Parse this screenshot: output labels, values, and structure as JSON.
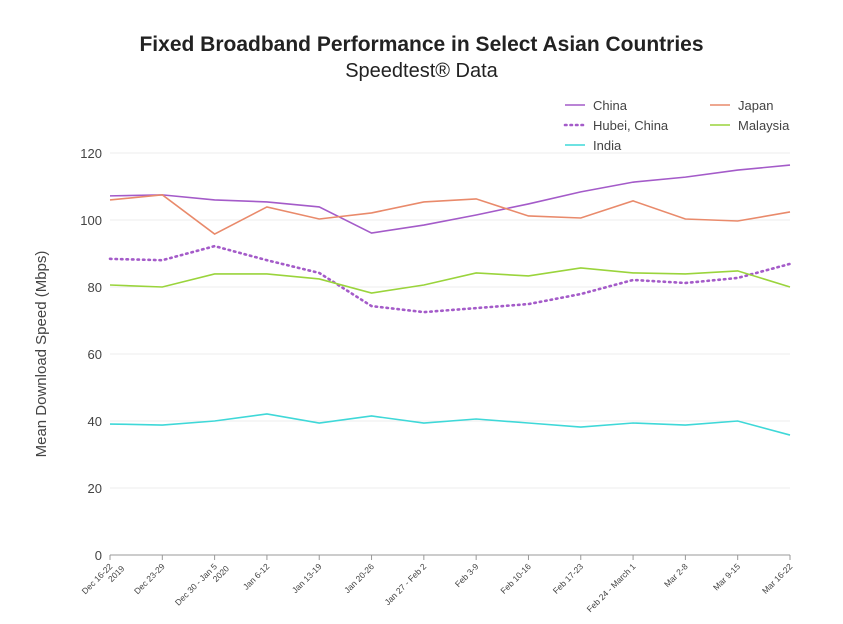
{
  "chart_data": {
    "type": "line",
    "title": "Fixed Broadband Performance in Select Asian Countries",
    "subtitle": "Speedtest® Data",
    "xlabel": "",
    "ylabel": "Mean Download Speed (Mbps)",
    "ylim": [
      0,
      120
    ],
    "yticks": [
      0,
      20,
      40,
      60,
      80,
      100,
      120
    ],
    "grid": true,
    "legend": "top-right",
    "categories": [
      [
        "Dec 16-22",
        "2019"
      ],
      [
        "Dec 23-29"
      ],
      [
        "Dec 30 - Jan 5",
        "2020"
      ],
      [
        "Jan 6-12"
      ],
      [
        "Jan 13-19"
      ],
      [
        "Jan 20-26"
      ],
      [
        "Jan 27 - Feb 2"
      ],
      [
        "Feb 3-9"
      ],
      [
        "Feb 10-16"
      ],
      [
        "Feb 17-23"
      ],
      [
        "Feb 24 - March 1"
      ],
      [
        "Mar 2-8"
      ],
      [
        "Mar 9-15"
      ],
      [
        "Mar 16-22"
      ]
    ],
    "series": [
      {
        "name": "China",
        "color": "#a45bc9",
        "dash": false,
        "values": [
          107.2,
          107.5,
          106,
          105.4,
          103.9,
          96.1,
          98.5,
          101.5,
          104.8,
          108.4,
          111.3,
          112.8,
          114.9,
          116.4
        ]
      },
      {
        "name": "Hubei, China",
        "color": "#a45bc9",
        "dash": true,
        "values": [
          88.4,
          88,
          92.2,
          88,
          84.2,
          74.3,
          72.5,
          73.7,
          74.9,
          77.9,
          82.1,
          81.2,
          82.7,
          86.9
        ]
      },
      {
        "name": "India",
        "color": "#3fd8d8",
        "dash": false,
        "values": [
          39.1,
          38.8,
          40,
          42.1,
          39.4,
          41.5,
          39.4,
          40.6,
          39.4,
          38.2,
          39.4,
          38.8,
          40,
          35.8
        ]
      },
      {
        "name": "Japan",
        "color": "#e98a6b",
        "dash": false,
        "values": [
          106,
          107.5,
          95.8,
          103.9,
          100.3,
          102.1,
          105.4,
          106.3,
          101.2,
          100.6,
          105.7,
          100.3,
          99.7,
          102.4
        ]
      },
      {
        "name": "Malaysia",
        "color": "#9ad43c",
        "dash": false,
        "values": [
          80.6,
          80,
          83.9,
          83.9,
          82.4,
          78.2,
          80.6,
          84.2,
          83.3,
          85.7,
          84.2,
          83.9,
          84.8,
          80
        ]
      }
    ]
  }
}
